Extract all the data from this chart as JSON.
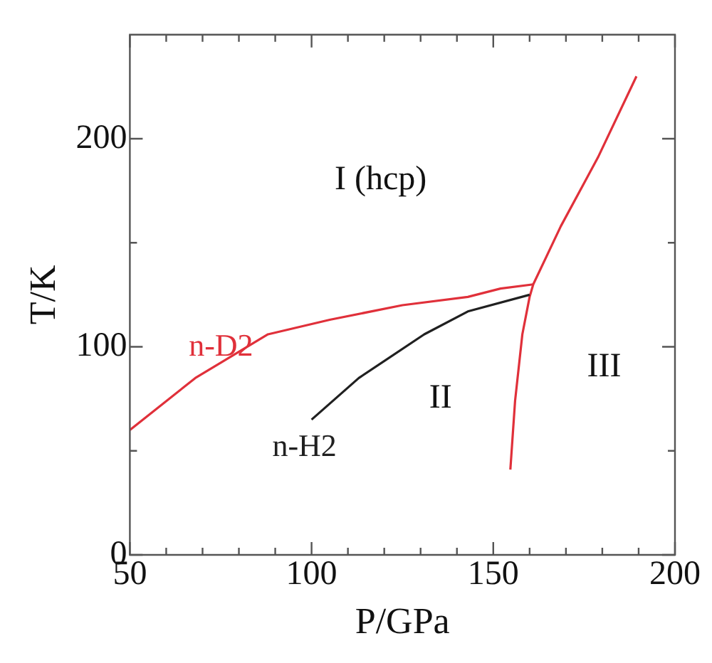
{
  "chart_data": {
    "type": "line",
    "xlabel": "P/GPa",
    "ylabel": "T/K",
    "xlim": [
      50,
      200
    ],
    "ylim": [
      0,
      250
    ],
    "xticks": [
      50,
      {
        "value": 60,
        "label": null
      },
      {
        "value": 70,
        "label": null
      },
      {
        "value": 80,
        "label": null
      },
      {
        "value": 90,
        "label": null
      },
      100,
      {
        "value": 110,
        "label": null
      },
      {
        "value": 120,
        "label": null
      },
      {
        "value": 130,
        "label": null
      },
      {
        "value": 140,
        "label": null
      },
      150,
      {
        "value": 160,
        "label": null
      },
      {
        "value": 170,
        "label": null
      },
      {
        "value": 180,
        "label": null
      },
      {
        "value": 190,
        "label": null
      },
      200
    ],
    "yticks": [
      0,
      {
        "value": 50,
        "label": null
      },
      100,
      {
        "value": 150,
        "label": null
      },
      200
    ],
    "grid": false,
    "legend": false,
    "marker": "none",
    "line_style": "solid",
    "series": [
      {
        "name": "n-D2",
        "color": "#e0303a",
        "x": [
          50,
          68,
          88,
          105,
          125,
          143,
          152,
          161
        ],
        "values": [
          60,
          85,
          106,
          113,
          120,
          124,
          128,
          130
        ]
      },
      {
        "name": "n-H2",
        "color": "#202020",
        "x": [
          100,
          113,
          131,
          143,
          160
        ],
        "values": [
          65,
          85,
          106,
          117,
          125
        ]
      },
      {
        "color": "#e0303a",
        "x": [
          154.7,
          156,
          158,
          160,
          161,
          168.6,
          178.8,
          189.4
        ],
        "values": [
          41,
          74,
          106,
          124,
          130,
          158,
          191,
          230
        ]
      }
    ],
    "annotations": [
      "I (hcp)",
      "II",
      "III"
    ]
  }
}
